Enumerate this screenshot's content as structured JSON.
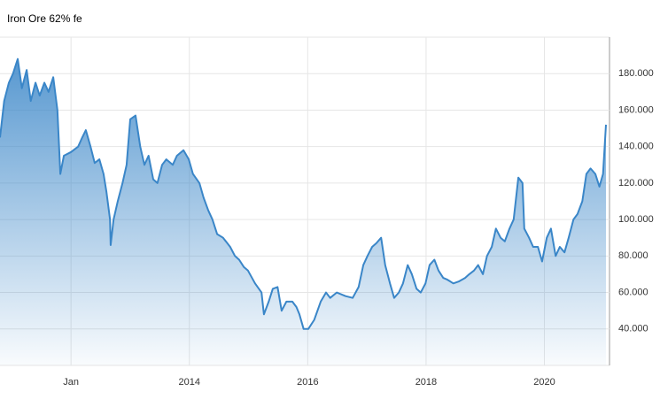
{
  "chart_data": {
    "type": "area",
    "title": "Iron Ore 62% fe",
    "x": [
      2010.8,
      2010.87,
      2010.95,
      2011.02,
      2011.1,
      2011.17,
      2011.25,
      2011.32,
      2011.4,
      2011.47,
      2011.55,
      2011.62,
      2011.7,
      2011.77,
      2011.82,
      2011.88,
      2012.0,
      2012.12,
      2012.19,
      2012.25,
      2012.33,
      2012.4,
      2012.48,
      2012.55,
      2012.6,
      2012.66,
      2012.67,
      2012.72,
      2012.79,
      2012.87,
      2012.94,
      2013.0,
      2013.09,
      2013.17,
      2013.24,
      2013.31,
      2013.39,
      2013.46,
      2013.54,
      2013.61,
      2013.72,
      2013.79,
      2013.9,
      2013.99,
      2014.06,
      2014.17,
      2014.24,
      2014.32,
      2014.39,
      2014.47,
      2014.57,
      2014.69,
      2014.77,
      2014.84,
      2014.92,
      2014.99,
      2015.11,
      2015.22,
      2015.26,
      2015.34,
      2015.41,
      2015.49,
      2015.56,
      2015.64,
      2015.74,
      2015.81,
      2015.86,
      2015.93,
      2016.01,
      2016.11,
      2016.22,
      2016.31,
      2016.38,
      2016.49,
      2016.64,
      2016.76,
      2016.86,
      2016.94,
      2017.01,
      2017.09,
      2017.16,
      2017.24,
      2017.31,
      2017.39,
      2017.46,
      2017.54,
      2017.61,
      2017.69,
      2017.76,
      2017.84,
      2017.91,
      2017.99,
      2018.06,
      2018.14,
      2018.21,
      2018.29,
      2018.36,
      2018.46,
      2018.55,
      2018.66,
      2018.73,
      2018.81,
      2018.88,
      2018.96,
      2019.03,
      2019.11,
      2019.18,
      2019.26,
      2019.33,
      2019.41,
      2019.48,
      2019.56,
      2019.63,
      2019.66,
      2019.74,
      2019.81,
      2019.89,
      2019.96,
      2020.04,
      2020.11,
      2020.19,
      2020.26,
      2020.34,
      2020.41,
      2020.49,
      2020.56,
      2020.64,
      2020.71,
      2020.78,
      2020.86,
      2020.93,
      2020.99,
      2021.04
    ],
    "series": [
      {
        "color": "#3a86c8",
        "values": [
          145,
          165,
          175,
          180,
          188,
          172,
          182,
          165,
          175,
          168,
          175,
          170,
          178,
          160,
          125,
          135,
          137,
          140,
          145,
          149,
          140,
          131,
          133,
          125,
          115,
          100,
          86,
          100,
          110,
          120,
          130,
          155,
          157,
          140,
          130,
          135,
          122,
          120,
          130,
          133,
          130,
          135,
          138,
          133,
          125,
          120,
          112,
          105,
          100,
          92,
          90,
          85,
          80,
          78,
          74,
          72,
          65,
          60,
          48,
          55,
          62,
          63,
          50,
          55,
          55,
          52,
          48,
          40,
          40,
          45,
          55,
          60,
          57,
          60,
          58,
          57,
          63,
          75,
          80,
          85,
          87,
          90,
          75,
          65,
          57,
          60,
          65,
          75,
          70,
          62,
          60,
          65,
          75,
          78,
          72,
          68,
          67,
          65,
          66,
          68,
          70,
          72,
          75,
          70,
          80,
          85,
          95,
          90,
          88,
          95,
          100,
          123,
          120,
          95,
          90,
          85,
          85,
          77,
          90,
          95,
          80,
          85,
          82,
          90,
          100,
          103,
          110,
          125,
          128,
          125,
          118,
          125,
          152
        ]
      }
    ],
    "xlim": [
      2010.8,
      2021.1
    ],
    "xticks": [
      {
        "value": 2012,
        "label": "Jan"
      },
      2014,
      2016,
      2018,
      2020
    ],
    "ylim": [
      20,
      200
    ],
    "yticks": [
      {
        "value": 40,
        "label": "40.000"
      },
      {
        "value": 60,
        "label": "60.000"
      },
      {
        "value": 80,
        "label": "80.000"
      },
      {
        "value": 100,
        "label": "100.000"
      },
      {
        "value": 120,
        "label": "120.000"
      },
      {
        "value": 140,
        "label": "140.000"
      },
      {
        "value": 160,
        "label": "160.000"
      },
      {
        "value": 180,
        "label": "180.000"
      }
    ],
    "grid": true
  }
}
